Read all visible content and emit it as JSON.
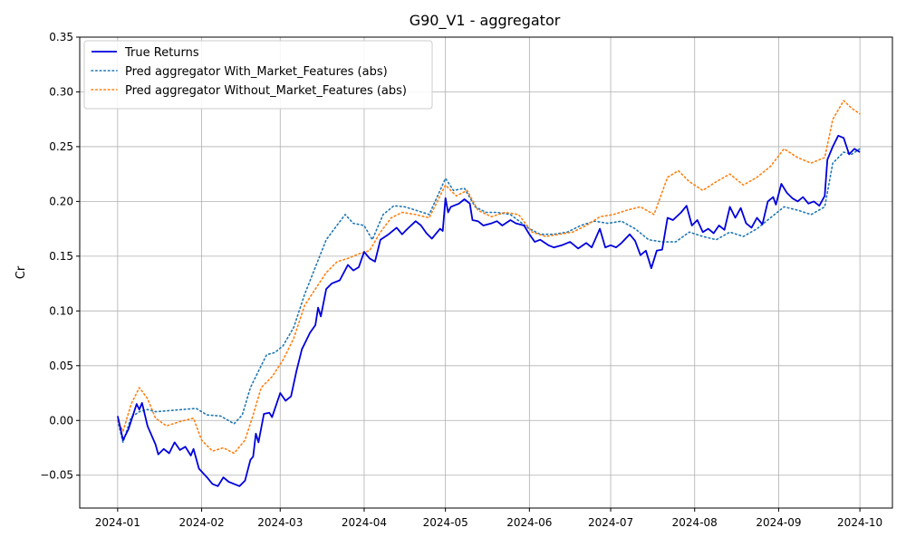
{
  "chart_data": {
    "type": "line",
    "title": "G90_V1 - aggregator",
    "xlabel": "",
    "ylabel": "Cr",
    "x_axis": "date",
    "xlim": [
      "2023-12-18",
      "2024-10-13"
    ],
    "ylim": [
      -0.08,
      0.35
    ],
    "x_ticks": [
      "2024-01-01",
      "2024-02-01",
      "2024-03-01",
      "2024-04-01",
      "2024-05-01",
      "2024-06-01",
      "2024-07-01",
      "2024-08-01",
      "2024-09-01",
      "2024-10-01"
    ],
    "x_tick_labels": [
      "2024-01",
      "2024-02",
      "2024-03",
      "2024-04",
      "2024-05",
      "2024-06",
      "2024-07",
      "2024-08",
      "2024-09",
      "2024-10"
    ],
    "y_ticks": [
      -0.05,
      0.0,
      0.05,
      0.1,
      0.15,
      0.2,
      0.25,
      0.3,
      0.35
    ],
    "y_tick_labels": [
      "−0.05",
      "0.00",
      "0.05",
      "0.10",
      "0.15",
      "0.20",
      "0.25",
      "0.30",
      "0.35"
    ],
    "grid": true,
    "legend_position": "upper-left",
    "series": [
      {
        "name": "True Returns",
        "color": "#0000dd",
        "style": "solid",
        "points": [
          [
            "2024-01-01",
            0.004
          ],
          [
            "2024-01-03",
            -0.018
          ],
          [
            "2024-01-05",
            -0.008
          ],
          [
            "2024-01-08",
            0.015
          ],
          [
            "2024-01-09",
            0.01
          ],
          [
            "2024-01-10",
            0.016
          ],
          [
            "2024-01-12",
            -0.005
          ],
          [
            "2024-01-15",
            -0.022
          ],
          [
            "2024-01-16",
            -0.031
          ],
          [
            "2024-01-18",
            -0.026
          ],
          [
            "2024-01-20",
            -0.03
          ],
          [
            "2024-01-22",
            -0.02
          ],
          [
            "2024-01-24",
            -0.027
          ],
          [
            "2024-01-26",
            -0.024
          ],
          [
            "2024-01-28",
            -0.032
          ],
          [
            "2024-01-29",
            -0.026
          ],
          [
            "2024-01-31",
            -0.044
          ],
          [
            "2024-02-03",
            -0.052
          ],
          [
            "2024-02-05",
            -0.058
          ],
          [
            "2024-02-07",
            -0.06
          ],
          [
            "2024-02-09",
            -0.052
          ],
          [
            "2024-02-11",
            -0.056
          ],
          [
            "2024-02-13",
            -0.058
          ],
          [
            "2024-02-15",
            -0.06
          ],
          [
            "2024-02-17",
            -0.055
          ],
          [
            "2024-02-19",
            -0.036
          ],
          [
            "2024-02-20",
            -0.033
          ],
          [
            "2024-02-21",
            -0.012
          ],
          [
            "2024-02-22",
            -0.02
          ],
          [
            "2024-02-24",
            0.006
          ],
          [
            "2024-02-26",
            0.007
          ],
          [
            "2024-02-27",
            0.003
          ],
          [
            "2024-03-01",
            0.025
          ],
          [
            "2024-03-03",
            0.018
          ],
          [
            "2024-03-05",
            0.022
          ],
          [
            "2024-03-07",
            0.045
          ],
          [
            "2024-03-09",
            0.065
          ],
          [
            "2024-03-10",
            0.07
          ],
          [
            "2024-03-12",
            0.08
          ],
          [
            "2024-03-14",
            0.087
          ],
          [
            "2024-03-15",
            0.103
          ],
          [
            "2024-03-16",
            0.095
          ],
          [
            "2024-03-18",
            0.12
          ],
          [
            "2024-03-20",
            0.125
          ],
          [
            "2024-03-23",
            0.128
          ],
          [
            "2024-03-26",
            0.142
          ],
          [
            "2024-03-28",
            0.137
          ],
          [
            "2024-03-30",
            0.14
          ],
          [
            "2024-04-01",
            0.154
          ],
          [
            "2024-04-03",
            0.148
          ],
          [
            "2024-04-05",
            0.145
          ],
          [
            "2024-04-07",
            0.165
          ],
          [
            "2024-04-10",
            0.17
          ],
          [
            "2024-04-13",
            0.176
          ],
          [
            "2024-04-15",
            0.17
          ],
          [
            "2024-04-17",
            0.175
          ],
          [
            "2024-04-20",
            0.182
          ],
          [
            "2024-04-22",
            0.178
          ],
          [
            "2024-04-24",
            0.171
          ],
          [
            "2024-04-26",
            0.166
          ],
          [
            "2024-04-29",
            0.175
          ],
          [
            "2024-04-30",
            0.173
          ],
          [
            "2024-05-01",
            0.203
          ],
          [
            "2024-05-02",
            0.19
          ],
          [
            "2024-05-03",
            0.195
          ],
          [
            "2024-05-06",
            0.198
          ],
          [
            "2024-05-08",
            0.202
          ],
          [
            "2024-05-10",
            0.198
          ],
          [
            "2024-05-11",
            0.183
          ],
          [
            "2024-05-13",
            0.182
          ],
          [
            "2024-05-15",
            0.178
          ],
          [
            "2024-05-18",
            0.18
          ],
          [
            "2024-05-20",
            0.182
          ],
          [
            "2024-05-22",
            0.178
          ],
          [
            "2024-05-25",
            0.183
          ],
          [
            "2024-05-27",
            0.18
          ],
          [
            "2024-05-30",
            0.178
          ],
          [
            "2024-06-01",
            0.17
          ],
          [
            "2024-06-03",
            0.163
          ],
          [
            "2024-06-05",
            0.165
          ],
          [
            "2024-06-08",
            0.16
          ],
          [
            "2024-06-10",
            0.158
          ],
          [
            "2024-06-13",
            0.16
          ],
          [
            "2024-06-16",
            0.163
          ],
          [
            "2024-06-19",
            0.157
          ],
          [
            "2024-06-22",
            0.162
          ],
          [
            "2024-06-24",
            0.158
          ],
          [
            "2024-06-27",
            0.175
          ],
          [
            "2024-06-29",
            0.158
          ],
          [
            "2024-07-01",
            0.16
          ],
          [
            "2024-07-03",
            0.158
          ],
          [
            "2024-07-05",
            0.162
          ],
          [
            "2024-07-08",
            0.17
          ],
          [
            "2024-07-10",
            0.164
          ],
          [
            "2024-07-12",
            0.151
          ],
          [
            "2024-07-14",
            0.155
          ],
          [
            "2024-07-16",
            0.139
          ],
          [
            "2024-07-18",
            0.155
          ],
          [
            "2024-07-20",
            0.156
          ],
          [
            "2024-07-22",
            0.185
          ],
          [
            "2024-07-24",
            0.183
          ],
          [
            "2024-07-27",
            0.19
          ],
          [
            "2024-07-29",
            0.196
          ],
          [
            "2024-07-31",
            0.178
          ],
          [
            "2024-08-02",
            0.183
          ],
          [
            "2024-08-04",
            0.172
          ],
          [
            "2024-08-06",
            0.175
          ],
          [
            "2024-08-08",
            0.171
          ],
          [
            "2024-08-10",
            0.178
          ],
          [
            "2024-08-12",
            0.174
          ],
          [
            "2024-08-14",
            0.195
          ],
          [
            "2024-08-16",
            0.185
          ],
          [
            "2024-08-18",
            0.194
          ],
          [
            "2024-08-20",
            0.18
          ],
          [
            "2024-08-22",
            0.176
          ],
          [
            "2024-08-24",
            0.185
          ],
          [
            "2024-08-26",
            0.179
          ],
          [
            "2024-08-28",
            0.2
          ],
          [
            "2024-08-30",
            0.204
          ],
          [
            "2024-08-31",
            0.197
          ],
          [
            "2024-09-02",
            0.216
          ],
          [
            "2024-09-04",
            0.208
          ],
          [
            "2024-09-06",
            0.203
          ],
          [
            "2024-09-08",
            0.2
          ],
          [
            "2024-09-10",
            0.204
          ],
          [
            "2024-09-12",
            0.198
          ],
          [
            "2024-09-14",
            0.2
          ],
          [
            "2024-09-16",
            0.196
          ],
          [
            "2024-09-18",
            0.205
          ],
          [
            "2024-09-19",
            0.238
          ],
          [
            "2024-09-21",
            0.25
          ],
          [
            "2024-09-23",
            0.26
          ],
          [
            "2024-09-25",
            0.258
          ],
          [
            "2024-09-27",
            0.243
          ],
          [
            "2024-09-29",
            0.248
          ],
          [
            "2024-10-01",
            0.245
          ]
        ]
      },
      {
        "name": "Pred aggregator With_Market_Features (abs)",
        "color": "#1f77b4",
        "style": "dotted",
        "points": [
          [
            "2024-01-01",
            0.0
          ],
          [
            "2024-01-03",
            -0.02
          ],
          [
            "2024-01-06",
            0.003
          ],
          [
            "2024-01-09",
            0.008
          ],
          [
            "2024-01-12",
            0.01
          ],
          [
            "2024-01-15",
            0.008
          ],
          [
            "2024-01-20",
            0.009
          ],
          [
            "2024-01-25",
            0.01
          ],
          [
            "2024-01-30",
            0.011
          ],
          [
            "2024-02-03",
            0.005
          ],
          [
            "2024-02-08",
            0.004
          ],
          [
            "2024-02-13",
            -0.003
          ],
          [
            "2024-02-16",
            0.005
          ],
          [
            "2024-02-19",
            0.03
          ],
          [
            "2024-02-22",
            0.045
          ],
          [
            "2024-02-25",
            0.06
          ],
          [
            "2024-02-28",
            0.062
          ],
          [
            "2024-03-02",
            0.068
          ],
          [
            "2024-03-06",
            0.085
          ],
          [
            "2024-03-10",
            0.115
          ],
          [
            "2024-03-14",
            0.14
          ],
          [
            "2024-03-18",
            0.165
          ],
          [
            "2024-03-21",
            0.175
          ],
          [
            "2024-03-25",
            0.188
          ],
          [
            "2024-03-28",
            0.18
          ],
          [
            "2024-04-01",
            0.178
          ],
          [
            "2024-04-04",
            0.165
          ],
          [
            "2024-04-08",
            0.188
          ],
          [
            "2024-04-12",
            0.196
          ],
          [
            "2024-04-16",
            0.195
          ],
          [
            "2024-04-20",
            0.192
          ],
          [
            "2024-04-25",
            0.188
          ],
          [
            "2024-05-01",
            0.221
          ],
          [
            "2024-05-04",
            0.21
          ],
          [
            "2024-05-08",
            0.212
          ],
          [
            "2024-05-12",
            0.195
          ],
          [
            "2024-05-16",
            0.19
          ],
          [
            "2024-05-20",
            0.19
          ],
          [
            "2024-05-25",
            0.188
          ],
          [
            "2024-06-01",
            0.175
          ],
          [
            "2024-06-05",
            0.17
          ],
          [
            "2024-06-10",
            0.17
          ],
          [
            "2024-06-15",
            0.172
          ],
          [
            "2024-06-20",
            0.178
          ],
          [
            "2024-06-25",
            0.182
          ],
          [
            "2024-06-30",
            0.18
          ],
          [
            "2024-07-05",
            0.182
          ],
          [
            "2024-07-10",
            0.175
          ],
          [
            "2024-07-15",
            0.165
          ],
          [
            "2024-07-20",
            0.163
          ],
          [
            "2024-07-25",
            0.163
          ],
          [
            "2024-07-30",
            0.172
          ],
          [
            "2024-08-04",
            0.168
          ],
          [
            "2024-08-09",
            0.165
          ],
          [
            "2024-08-14",
            0.172
          ],
          [
            "2024-08-19",
            0.168
          ],
          [
            "2024-08-24",
            0.175
          ],
          [
            "2024-08-29",
            0.185
          ],
          [
            "2024-09-03",
            0.195
          ],
          [
            "2024-09-08",
            0.192
          ],
          [
            "2024-09-13",
            0.188
          ],
          [
            "2024-09-18",
            0.195
          ],
          [
            "2024-09-21",
            0.235
          ],
          [
            "2024-09-25",
            0.245
          ],
          [
            "2024-09-28",
            0.243
          ],
          [
            "2024-10-01",
            0.248
          ]
        ]
      },
      {
        "name": "Pred aggregator Without_Market_Features (abs)",
        "color": "#ff7f0e",
        "style": "dotted",
        "points": [
          [
            "2024-01-01",
            0.0
          ],
          [
            "2024-01-03",
            -0.01
          ],
          [
            "2024-01-06",
            0.015
          ],
          [
            "2024-01-09",
            0.03
          ],
          [
            "2024-01-12",
            0.02
          ],
          [
            "2024-01-15",
            0.002
          ],
          [
            "2024-01-19",
            -0.005
          ],
          [
            "2024-01-24",
            -0.001
          ],
          [
            "2024-01-29",
            0.002
          ],
          [
            "2024-02-01",
            -0.018
          ],
          [
            "2024-02-05",
            -0.028
          ],
          [
            "2024-02-09",
            -0.025
          ],
          [
            "2024-02-13",
            -0.03
          ],
          [
            "2024-02-17",
            -0.018
          ],
          [
            "2024-02-20",
            0.005
          ],
          [
            "2024-02-23",
            0.03
          ],
          [
            "2024-02-27",
            0.04
          ],
          [
            "2024-03-02",
            0.055
          ],
          [
            "2024-03-06",
            0.075
          ],
          [
            "2024-03-10",
            0.105
          ],
          [
            "2024-03-14",
            0.12
          ],
          [
            "2024-03-18",
            0.135
          ],
          [
            "2024-03-22",
            0.145
          ],
          [
            "2024-03-26",
            0.148
          ],
          [
            "2024-03-30",
            0.152
          ],
          [
            "2024-04-03",
            0.155
          ],
          [
            "2024-04-07",
            0.172
          ],
          [
            "2024-04-11",
            0.185
          ],
          [
            "2024-04-15",
            0.19
          ],
          [
            "2024-04-20",
            0.188
          ],
          [
            "2024-04-25",
            0.185
          ],
          [
            "2024-05-01",
            0.215
          ],
          [
            "2024-05-05",
            0.205
          ],
          [
            "2024-05-09",
            0.21
          ],
          [
            "2024-05-13",
            0.192
          ],
          [
            "2024-05-18",
            0.186
          ],
          [
            "2024-05-23",
            0.19
          ],
          [
            "2024-05-28",
            0.188
          ],
          [
            "2024-06-02",
            0.172
          ],
          [
            "2024-06-07",
            0.168
          ],
          [
            "2024-06-12",
            0.17
          ],
          [
            "2024-06-17",
            0.172
          ],
          [
            "2024-06-22",
            0.178
          ],
          [
            "2024-06-27",
            0.186
          ],
          [
            "2024-07-02",
            0.188
          ],
          [
            "2024-07-07",
            0.192
          ],
          [
            "2024-07-12",
            0.195
          ],
          [
            "2024-07-17",
            0.188
          ],
          [
            "2024-07-22",
            0.222
          ],
          [
            "2024-07-26",
            0.228
          ],
          [
            "2024-07-30",
            0.218
          ],
          [
            "2024-08-04",
            0.21
          ],
          [
            "2024-08-09",
            0.218
          ],
          [
            "2024-08-14",
            0.225
          ],
          [
            "2024-08-19",
            0.215
          ],
          [
            "2024-08-24",
            0.222
          ],
          [
            "2024-08-29",
            0.232
          ],
          [
            "2024-09-03",
            0.248
          ],
          [
            "2024-09-08",
            0.24
          ],
          [
            "2024-09-13",
            0.235
          ],
          [
            "2024-09-18",
            0.24
          ],
          [
            "2024-09-21",
            0.275
          ],
          [
            "2024-09-25",
            0.292
          ],
          [
            "2024-09-28",
            0.285
          ],
          [
            "2024-10-01",
            0.28
          ]
        ]
      }
    ]
  }
}
